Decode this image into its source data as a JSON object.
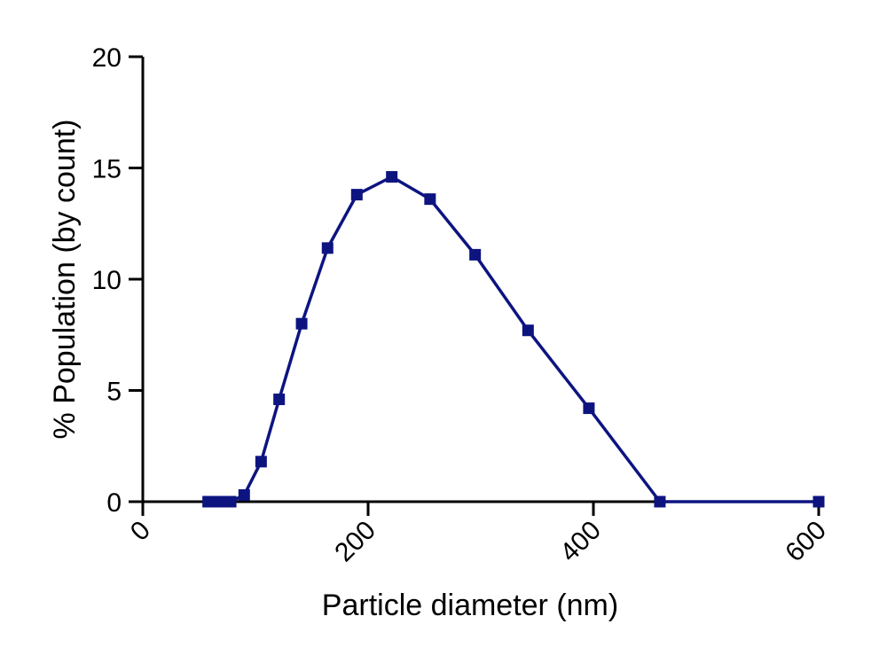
{
  "chart_data": {
    "type": "line",
    "title": "",
    "xlabel": "Particle diameter (nm)",
    "ylabel": "% Population (by count)",
    "xlim": [
      0,
      600
    ],
    "ylim": [
      0,
      20
    ],
    "xticks": [
      0,
      200,
      400,
      600
    ],
    "yticks": [
      0,
      5,
      10,
      15,
      20
    ],
    "grid": false,
    "legend": "none",
    "marker": "square",
    "color": "#0d1480",
    "series": [
      {
        "x": [
          58,
          66,
          72,
          78,
          90,
          105,
          121,
          141,
          164,
          190,
          221,
          255,
          295,
          342,
          396,
          459,
          600
        ],
        "y": [
          0,
          0,
          0,
          0,
          0.3,
          1.8,
          4.6,
          8.0,
          11.4,
          13.8,
          14.6,
          13.6,
          11.1,
          7.7,
          4.2,
          0,
          0
        ]
      }
    ]
  }
}
